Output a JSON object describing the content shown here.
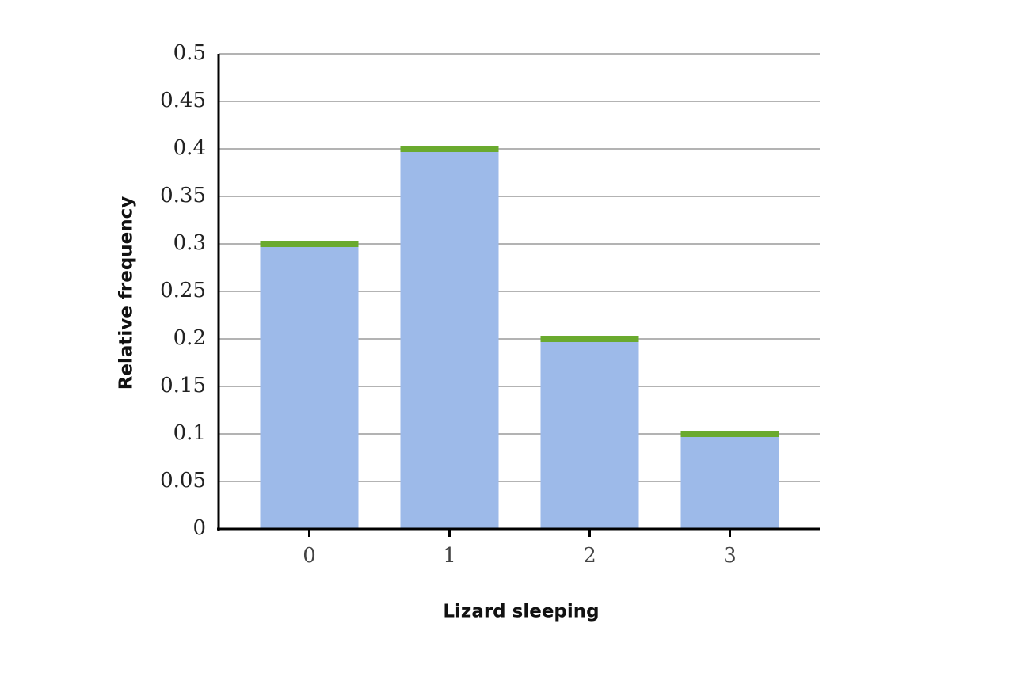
{
  "chart_data": {
    "type": "bar",
    "x_label": "Lizard sleeping",
    "y_label": "Relative frequency",
    "categories": [
      "0",
      "1",
      "2",
      "3"
    ],
    "values": [
      0.3,
      0.4,
      0.2,
      0.1
    ],
    "color": "#9dbae9",
    "cap_color": "#6aaa2e",
    "ylim": [
      0,
      0.5
    ],
    "yticks": [
      0,
      0.05,
      0.1,
      0.15,
      0.2,
      0.25,
      0.3,
      0.35,
      0.4,
      0.45,
      0.5
    ],
    "grid": true
  }
}
